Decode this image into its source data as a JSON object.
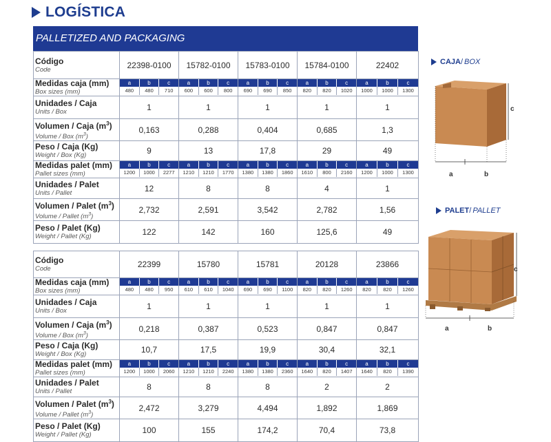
{
  "title": "LOGÍSTICA",
  "banner": "PALLETIZED AND PACKAGING",
  "labels": {
    "codigo": {
      "es": "Código",
      "en": "Code"
    },
    "medidas_caja": {
      "es": "Medidas caja (mm)",
      "en": "Box sizes (mm)"
    },
    "unidades_caja": {
      "es": "Unidades / Caja",
      "en": "Units / Box"
    },
    "volumen_caja": {
      "es": "Volumen / Caja (m",
      "en": "Volume / Box (m"
    },
    "peso_caja": {
      "es": "Peso / Caja (Kg)",
      "en": "Weight / Box (Kg)"
    },
    "medidas_palet": {
      "es": "Medidas palet (mm)",
      "en": "Pallet sizes (mm)"
    },
    "unidades_palet": {
      "es": "Unidades / Palet",
      "en": "Units / Pallet"
    },
    "volumen_palet": {
      "es": "Volumen / Palet (m",
      "en": "Volume / Pallet (m"
    },
    "peso_palet": {
      "es": "Peso / Palet (Kg)",
      "en": "Weight / Pallet (Kg)"
    },
    "sup3": "3",
    "close_paren": ")",
    "abc": [
      "a",
      "b",
      "c"
    ]
  },
  "tables": [
    {
      "codes": [
        "22398-0100",
        "15782-0100",
        "15783-0100",
        "15784-0100",
        "22402"
      ],
      "box_sizes": [
        [
          "480",
          "480",
          "710"
        ],
        [
          "600",
          "600",
          "800"
        ],
        [
          "690",
          "690",
          "850"
        ],
        [
          "820",
          "820",
          "1020"
        ],
        [
          "1000",
          "1000",
          "1300"
        ]
      ],
      "units_box": [
        "1",
        "1",
        "1",
        "1",
        "1"
      ],
      "volume_box": [
        "0,163",
        "0,288",
        "0,404",
        "0,685",
        "1,3"
      ],
      "weight_box": [
        "9",
        "13",
        "17,8",
        "29",
        "49"
      ],
      "pallet_sizes": [
        [
          "1200",
          "1000",
          "2277"
        ],
        [
          "1210",
          "1210",
          "1770"
        ],
        [
          "1380",
          "1380",
          "1860"
        ],
        [
          "1610",
          "800",
          "2160"
        ],
        [
          "1200",
          "1000",
          "1300"
        ]
      ],
      "units_pallet": [
        "12",
        "8",
        "8",
        "4",
        "1"
      ],
      "volume_pallet": [
        "2,732",
        "2,591",
        "3,542",
        "2,782",
        "1,56"
      ],
      "weight_pallet": [
        "122",
        "142",
        "160",
        "125,6",
        "49"
      ]
    },
    {
      "codes": [
        "22399",
        "15780",
        "15781",
        "20128",
        "23866"
      ],
      "box_sizes": [
        [
          "480",
          "480",
          "950"
        ],
        [
          "610",
          "610",
          "1040"
        ],
        [
          "690",
          "690",
          "1100"
        ],
        [
          "820",
          "820",
          "1260"
        ],
        [
          "820",
          "820",
          "1260"
        ]
      ],
      "units_box": [
        "1",
        "1",
        "1",
        "1",
        "1"
      ],
      "volume_box": [
        "0,218",
        "0,387",
        "0,523",
        "0,847",
        "0,847"
      ],
      "weight_box": [
        "10,7",
        "17,5",
        "19,9",
        "30,4",
        "32,1"
      ],
      "pallet_sizes": [
        [
          "1200",
          "1000",
          "2060"
        ],
        [
          "1210",
          "1210",
          "2240"
        ],
        [
          "1380",
          "1380",
          "2360"
        ],
        [
          "1640",
          "820",
          "1407"
        ],
        [
          "1640",
          "820",
          "1390"
        ]
      ],
      "units_pallet": [
        "8",
        "8",
        "8",
        "2",
        "2"
      ],
      "volume_pallet": [
        "2,472",
        "3,279",
        "4,494",
        "1,892",
        "1,869"
      ],
      "weight_pallet": [
        "100",
        "155",
        "174,2",
        "70,4",
        "73,8"
      ]
    }
  ],
  "side": {
    "box": {
      "es": "CAJA",
      "sep": " / ",
      "en": "BOX"
    },
    "pallet": {
      "es": "PALET",
      "sep": " / ",
      "en": "PALLET"
    },
    "dims": {
      "a": "a",
      "b": "b",
      "c": "c"
    }
  },
  "colors": {
    "accent": "#1f3a93",
    "cardboard": "#c98a52",
    "cardboard_dark": "#a86a38",
    "wood": "#b07a45"
  }
}
